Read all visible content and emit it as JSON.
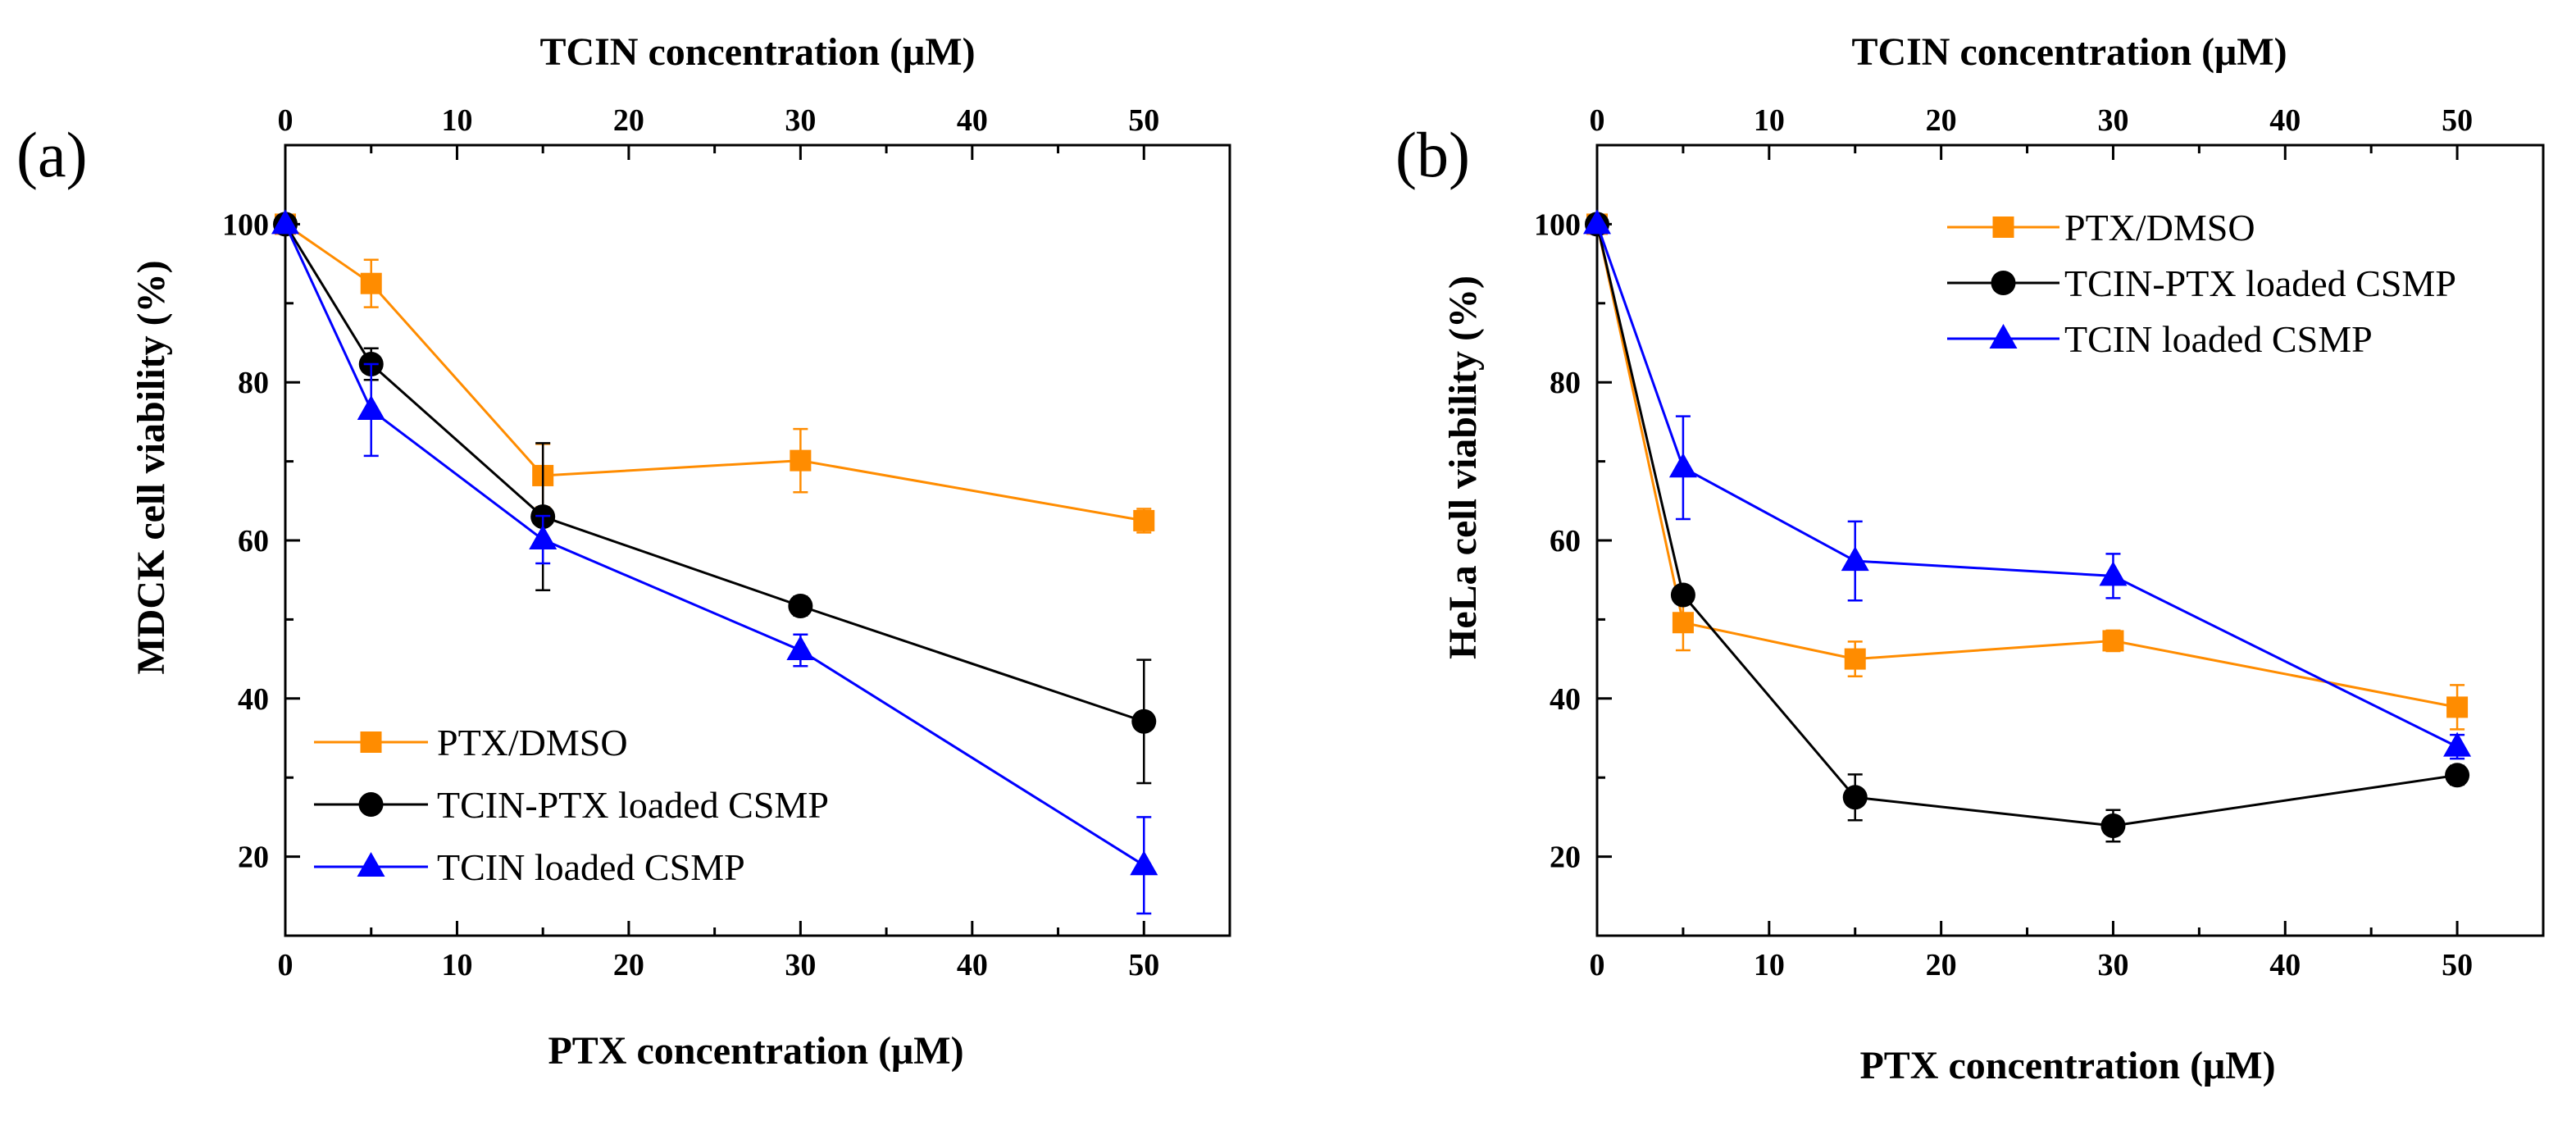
{
  "chart_data": [
    {
      "type": "line",
      "panel_label": "(a)",
      "xlabel": "PTX concentration (μM)",
      "x2label": "TCIN concentration (μM)",
      "ylabel": "MDCK cell viability (%)",
      "xlim": [
        0,
        55
      ],
      "ylim": [
        10,
        110
      ],
      "xticks": [
        0,
        10,
        20,
        30,
        40,
        50
      ],
      "x2ticks": [
        0,
        10,
        20,
        30,
        40,
        50
      ],
      "yticks": [
        20,
        40,
        60,
        80,
        100
      ],
      "legend_position": "bottom-left",
      "series": [
        {
          "name": "PTX/DMSO",
          "color": "#ff8c00",
          "marker": "square",
          "x": [
            0,
            5,
            15,
            30,
            50
          ],
          "y": [
            100,
            92.5,
            68.2,
            70.1,
            62.5
          ],
          "err": [
            0,
            3,
            4,
            4,
            1.5
          ]
        },
        {
          "name": "TCIN-PTX loaded CSMP",
          "color": "#000000",
          "marker": "circle",
          "x": [
            0,
            5,
            15,
            30,
            50
          ],
          "y": [
            100,
            82.3,
            63,
            51.7,
            37.1
          ],
          "err": [
            0,
            2,
            9.3,
            1.2,
            7.8
          ]
        },
        {
          "name": "TCIN loaded CSMP",
          "color": "#0000ff",
          "marker": "triangle",
          "x": [
            0,
            5,
            15,
            30,
            50
          ],
          "y": [
            100,
            76.5,
            60.1,
            46.1,
            18.9
          ],
          "err": [
            0,
            5.8,
            3,
            2,
            6.1
          ]
        }
      ]
    },
    {
      "type": "line",
      "panel_label": "(b)",
      "xlabel": "PTX concentration (μM)",
      "x2label": "TCIN concentration (μM)",
      "ylabel": "HeLa cell viability (%)",
      "xlim": [
        0,
        55
      ],
      "ylim": [
        10,
        110
      ],
      "xticks": [
        0,
        10,
        20,
        30,
        40,
        50
      ],
      "x2ticks": [
        0,
        10,
        20,
        30,
        40,
        50
      ],
      "yticks": [
        20,
        40,
        60,
        80,
        100
      ],
      "legend_position": "top-right",
      "series": [
        {
          "name": "PTX/DMSO",
          "color": "#ff8c00",
          "marker": "square",
          "x": [
            0,
            5,
            15,
            30,
            50
          ],
          "y": [
            100,
            49.6,
            45,
            47.3,
            38.9
          ],
          "err": [
            0,
            3.5,
            2.2,
            1.3,
            2.8
          ]
        },
        {
          "name": "TCIN-PTX loaded CSMP",
          "color": "#000000",
          "marker": "circle",
          "x": [
            0,
            5,
            15,
            30,
            50
          ],
          "y": [
            100,
            53.1,
            27.5,
            23.9,
            30.3
          ],
          "err": [
            0,
            0.8,
            2.9,
            2,
            1.2
          ]
        },
        {
          "name": "TCIN loaded CSMP",
          "color": "#0000ff",
          "marker": "triangle",
          "x": [
            0,
            5,
            15,
            30,
            50
          ],
          "y": [
            100,
            69.2,
            57.4,
            55.5,
            33.9
          ],
          "err": [
            0,
            6.5,
            5,
            2.8,
            1.5
          ]
        }
      ]
    }
  ]
}
